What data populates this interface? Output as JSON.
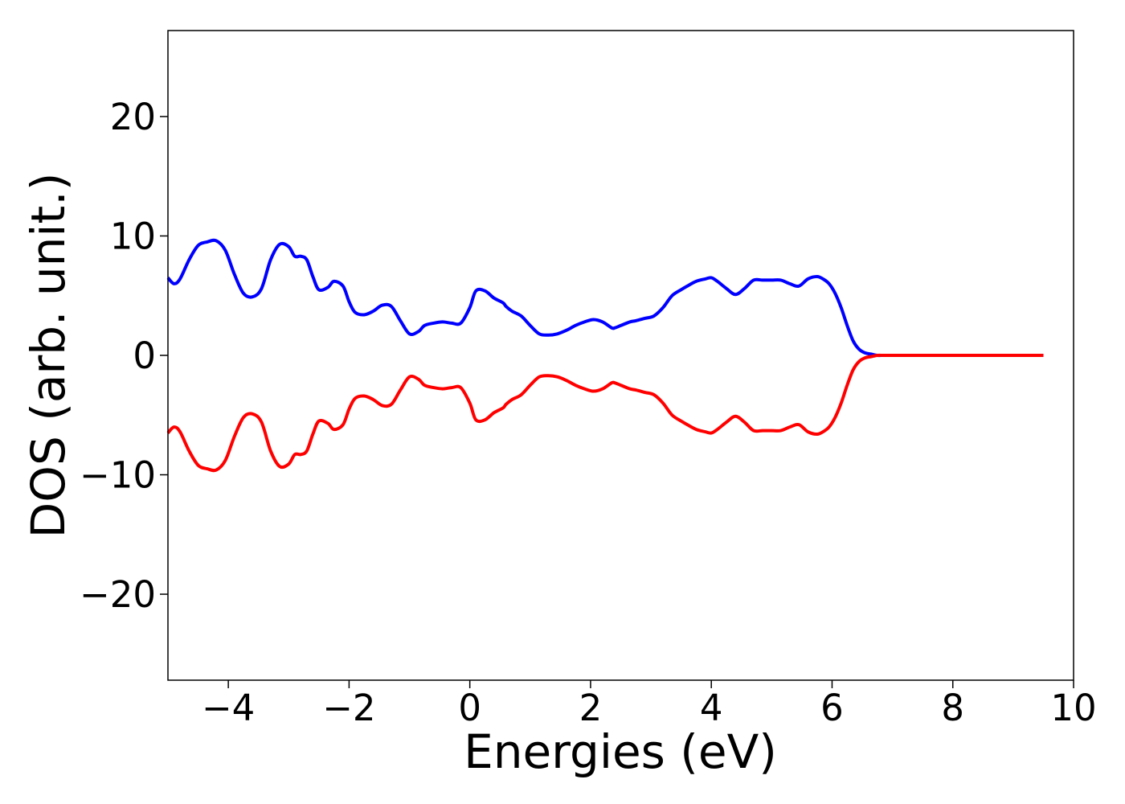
{
  "chart_data": {
    "type": "line",
    "title": "",
    "xlabel": "Energies (eV)",
    "ylabel": "DOS (arb. unit.)",
    "xlim": [
      -5,
      10
    ],
    "ylim": [
      -27.2,
      27.2
    ],
    "xticks": [
      -4,
      -2,
      0,
      2,
      4,
      6,
      8,
      10
    ],
    "xtick_labels": [
      "−4",
      "−2",
      "0",
      "2",
      "4",
      "6",
      "8",
      "10"
    ],
    "yticks": [
      -20,
      -10,
      0,
      10,
      20
    ],
    "ytick_labels": [
      "−20",
      "−10",
      "0",
      "10",
      "20"
    ],
    "grid": false,
    "legend": "none",
    "series": [
      {
        "color": "#0000ff",
        "x": [
          -5.0,
          -4.9,
          -4.8,
          -4.65,
          -4.5,
          -4.35,
          -4.2,
          -4.05,
          -3.9,
          -3.75,
          -3.6,
          -3.45,
          -3.3,
          -3.15,
          -3.0,
          -2.9,
          -2.8,
          -2.7,
          -2.6,
          -2.5,
          -2.35,
          -2.25,
          -2.1,
          -2.0,
          -1.9,
          -1.75,
          -1.6,
          -1.45,
          -1.3,
          -1.15,
          -1.0,
          -0.85,
          -0.75,
          -0.6,
          -0.45,
          -0.3,
          -0.15,
          0.0,
          0.1,
          0.25,
          0.4,
          0.55,
          0.6,
          0.7,
          0.85,
          1.0,
          1.15,
          1.3,
          1.45,
          1.6,
          1.75,
          1.9,
          2.05,
          2.2,
          2.35,
          2.4,
          2.5,
          2.65,
          2.75,
          2.9,
          3.05,
          3.2,
          3.35,
          3.5,
          3.6,
          3.75,
          3.9,
          4.0,
          4.1,
          4.25,
          4.4,
          4.55,
          4.7,
          4.85,
          5.0,
          5.15,
          5.3,
          5.45,
          5.6,
          5.75,
          5.85,
          5.95,
          6.05,
          6.15,
          6.25,
          6.35,
          6.45,
          6.55,
          6.65,
          6.75,
          6.85,
          7.0,
          7.5,
          8.0,
          8.5,
          9.0,
          9.5
        ],
        "values": [
          6.5,
          6.0,
          6.4,
          8.0,
          9.2,
          9.5,
          9.6,
          8.8,
          6.8,
          5.2,
          4.9,
          5.6,
          8.0,
          9.3,
          9.1,
          8.3,
          8.3,
          8.0,
          6.6,
          5.5,
          5.7,
          6.2,
          5.8,
          4.5,
          3.6,
          3.4,
          3.7,
          4.2,
          4.1,
          2.9,
          1.8,
          2.0,
          2.5,
          2.7,
          2.8,
          2.7,
          2.7,
          4.0,
          5.4,
          5.4,
          4.8,
          4.4,
          4.1,
          3.7,
          3.3,
          2.5,
          1.8,
          1.7,
          1.8,
          2.1,
          2.5,
          2.8,
          3.0,
          2.8,
          2.3,
          2.3,
          2.5,
          2.8,
          2.9,
          3.1,
          3.3,
          4.0,
          5.0,
          5.5,
          5.8,
          6.2,
          6.4,
          6.5,
          6.2,
          5.6,
          5.1,
          5.6,
          6.3,
          6.3,
          6.3,
          6.3,
          6.0,
          5.8,
          6.4,
          6.6,
          6.4,
          6.0,
          5.2,
          4.0,
          2.5,
          1.2,
          0.5,
          0.2,
          0.1,
          0.0,
          0.0,
          0.0,
          0.0,
          0.0,
          0.0,
          0.0,
          0.0
        ]
      },
      {
        "color": "#ff0000",
        "x": [
          -5.0,
          -4.9,
          -4.8,
          -4.65,
          -4.5,
          -4.35,
          -4.2,
          -4.05,
          -3.9,
          -3.75,
          -3.6,
          -3.45,
          -3.3,
          -3.15,
          -3.0,
          -2.9,
          -2.8,
          -2.7,
          -2.6,
          -2.5,
          -2.35,
          -2.25,
          -2.1,
          -2.0,
          -1.9,
          -1.75,
          -1.6,
          -1.45,
          -1.3,
          -1.15,
          -1.0,
          -0.85,
          -0.75,
          -0.6,
          -0.45,
          -0.3,
          -0.15,
          0.0,
          0.1,
          0.25,
          0.4,
          0.55,
          0.6,
          0.7,
          0.85,
          1.0,
          1.15,
          1.3,
          1.45,
          1.6,
          1.75,
          1.9,
          2.05,
          2.2,
          2.35,
          2.4,
          2.5,
          2.65,
          2.75,
          2.9,
          3.05,
          3.2,
          3.35,
          3.5,
          3.6,
          3.75,
          3.9,
          4.0,
          4.1,
          4.25,
          4.4,
          4.55,
          4.7,
          4.85,
          5.0,
          5.15,
          5.3,
          5.45,
          5.6,
          5.75,
          5.85,
          5.95,
          6.05,
          6.15,
          6.25,
          6.35,
          6.45,
          6.55,
          6.65,
          6.75,
          6.85,
          7.0,
          7.5,
          8.0,
          8.5,
          9.0,
          9.5
        ],
        "values": [
          -6.5,
          -6.0,
          -6.4,
          -8.0,
          -9.2,
          -9.5,
          -9.6,
          -8.8,
          -6.8,
          -5.2,
          -4.9,
          -5.6,
          -8.0,
          -9.3,
          -9.1,
          -8.3,
          -8.3,
          -8.0,
          -6.6,
          -5.5,
          -5.7,
          -6.2,
          -5.8,
          -4.5,
          -3.6,
          -3.4,
          -3.7,
          -4.2,
          -4.1,
          -2.9,
          -1.8,
          -2.0,
          -2.5,
          -2.7,
          -2.8,
          -2.7,
          -2.7,
          -4.0,
          -5.4,
          -5.4,
          -4.8,
          -4.4,
          -4.1,
          -3.7,
          -3.3,
          -2.5,
          -1.8,
          -1.7,
          -1.8,
          -2.1,
          -2.5,
          -2.8,
          -3.0,
          -2.8,
          -2.3,
          -2.3,
          -2.5,
          -2.8,
          -2.9,
          -3.1,
          -3.3,
          -4.0,
          -5.0,
          -5.5,
          -5.8,
          -6.2,
          -6.4,
          -6.5,
          -6.2,
          -5.6,
          -5.1,
          -5.6,
          -6.3,
          -6.3,
          -6.3,
          -6.3,
          -6.0,
          -5.8,
          -6.4,
          -6.6,
          -6.4,
          -6.0,
          -5.2,
          -4.0,
          -2.5,
          -1.2,
          -0.5,
          -0.2,
          -0.1,
          0.0,
          0.0,
          0.0,
          0.0,
          0.0,
          0.0,
          0.0,
          0.0
        ]
      }
    ]
  }
}
